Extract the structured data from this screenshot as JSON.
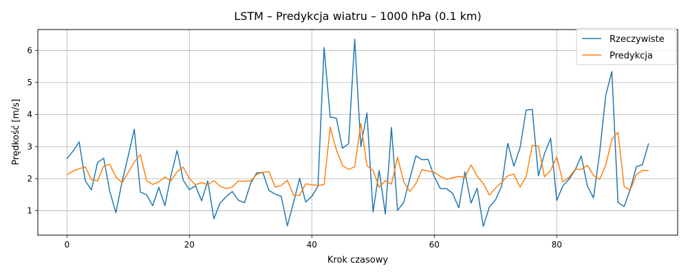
{
  "chart_data": {
    "type": "line",
    "title": "LSTM – Predykcja wiatru – 1000 hPa (0.1 km)",
    "xlabel": "Krok czasowy",
    "ylabel": "Prędkość [m/s]",
    "xlim": [
      -4.75,
      99.75
    ],
    "ylim": [
      0.24,
      6.65
    ],
    "xticks": [
      0,
      20,
      40,
      60,
      80
    ],
    "yticks": [
      1,
      2,
      3,
      4,
      5,
      6
    ],
    "grid": true,
    "legend_position": "upper right",
    "series": [
      {
        "name": "Rzeczywiste",
        "color": "#1f77b4",
        "values": [
          2.62,
          2.86,
          3.15,
          1.93,
          1.65,
          2.5,
          2.64,
          1.6,
          0.94,
          1.9,
          2.7,
          3.54,
          1.58,
          1.5,
          1.16,
          1.73,
          1.16,
          2.1,
          2.88,
          1.95,
          1.66,
          1.78,
          1.31,
          1.93,
          0.75,
          1.23,
          1.44,
          1.6,
          1.33,
          1.25,
          1.85,
          2.18,
          2.19,
          1.63,
          1.52,
          1.45,
          0.53,
          1.25,
          2.01,
          1.27,
          1.45,
          1.76,
          6.09,
          3.92,
          3.89,
          2.95,
          3.09,
          6.35,
          3.0,
          4.05,
          0.96,
          2.26,
          0.9,
          3.6,
          1.01,
          1.26,
          2.0,
          2.71,
          2.59,
          2.6,
          2.06,
          1.69,
          1.69,
          1.54,
          1.09,
          2.21,
          1.24,
          1.7,
          0.51,
          1.12,
          1.34,
          1.77,
          3.1,
          2.39,
          2.96,
          4.14,
          4.16,
          2.09,
          2.78,
          3.26,
          1.32,
          1.78,
          1.98,
          2.27,
          2.71,
          1.77,
          1.4,
          2.8,
          4.6,
          5.34,
          1.26,
          1.13,
          1.67,
          2.37,
          2.44,
          3.1
        ]
      },
      {
        "name": "Predykcja",
        "color": "#ff7f0e",
        "values": [
          2.12,
          2.24,
          2.31,
          2.37,
          1.97,
          1.93,
          2.39,
          2.45,
          2.05,
          1.87,
          2.19,
          2.52,
          2.75,
          1.94,
          1.82,
          1.9,
          2.05,
          1.93,
          2.22,
          2.36,
          2.0,
          1.81,
          1.88,
          1.81,
          1.94,
          1.77,
          1.69,
          1.74,
          1.93,
          1.92,
          1.93,
          2.13,
          2.2,
          2.22,
          1.74,
          1.79,
          1.95,
          1.49,
          1.48,
          1.84,
          1.81,
          1.79,
          1.82,
          3.61,
          2.9,
          2.41,
          2.29,
          2.37,
          3.72,
          2.41,
          2.26,
          1.73,
          1.94,
          1.83,
          2.67,
          1.91,
          1.6,
          1.85,
          2.28,
          2.24,
          2.2,
          2.07,
          1.98,
          2.03,
          2.07,
          2.04,
          2.43,
          2.08,
          1.85,
          1.49,
          1.71,
          1.88,
          2.09,
          2.14,
          1.74,
          2.06,
          3.04,
          3.02,
          2.06,
          2.26,
          2.68,
          1.9,
          2.04,
          2.29,
          2.29,
          2.42,
          2.1,
          1.98,
          2.42,
          3.23,
          3.45,
          1.76,
          1.64,
          2.13,
          2.26,
          2.25
        ]
      }
    ]
  }
}
